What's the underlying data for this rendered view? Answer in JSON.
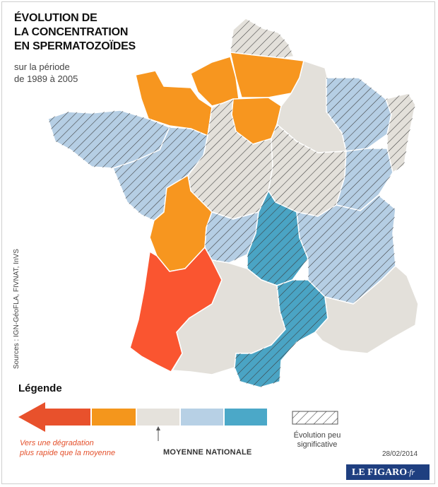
{
  "title": {
    "line1": "ÉVOLUTION DE",
    "line2": "LA CONCENTRATION",
    "line3": "EN SPERMATOZOÏDES"
  },
  "subtitle": {
    "line1": "sur la période",
    "line2": "de 1989 à 2005"
  },
  "sources": "Sources : IGN-GéoFLA, FIVNAT, InVS",
  "legend": {
    "title": "Légende",
    "scale_colors": [
      "#e8512c",
      "#f4961c",
      "#e5e2dc",
      "#b7d0e5",
      "#4ba8c8"
    ],
    "degradation_note_line1": "Vers une dégradation",
    "degradation_note_line2": "plus rapide que la moyenne",
    "average_label": "MOYENNE NATIONALE",
    "not_significant_line1": "Évolution peu",
    "not_significant_line2": "significative"
  },
  "colors": {
    "red": "#fa5530",
    "orange": "#f7961f",
    "grey": "#e3e0da",
    "lightblue": "#b5cee4",
    "blue": "#4aa4c4",
    "hatch": "#3a3a3a"
  },
  "date": "28/02/2014",
  "logo": {
    "main": "LE FIGARO",
    "suffix": "·fr"
  }
}
